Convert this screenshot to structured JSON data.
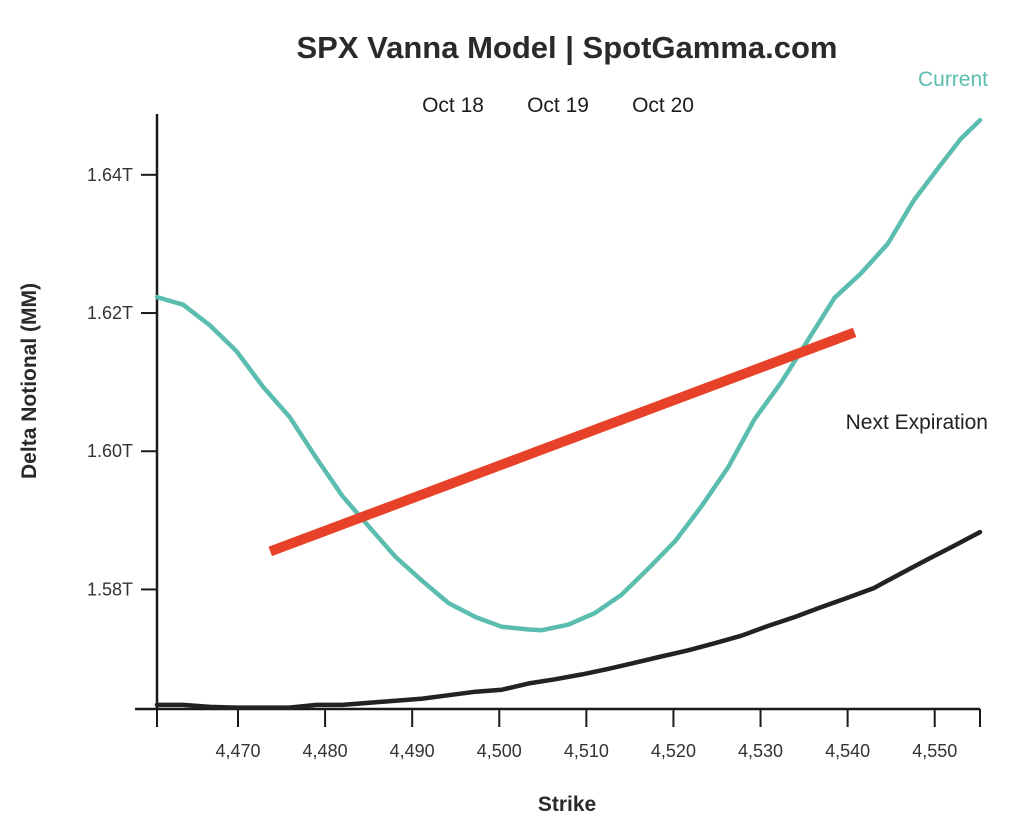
{
  "chart_data": {
    "type": "line",
    "title": "SPX Vanna Model | SpotGamma.com",
    "xlabel": "Strike",
    "ylabel": "Delta Notional (MM)",
    "expiration_labels": [
      "Oct 18",
      "Oct 19",
      "Oct 20"
    ],
    "xlim": [
      4460.7,
      4555.2
    ],
    "ylim": [
      1.5627,
      1.6488
    ],
    "x_ticks": [
      4470,
      4480,
      4490,
      4500,
      4510,
      4520,
      4530,
      4540,
      4550
    ],
    "x_tick_labels": [
      "4,470",
      "4,480",
      "4,490",
      "4,500",
      "4,510",
      "4,520",
      "4,530",
      "4,540",
      "4,550"
    ],
    "y_ticks": [
      1.58,
      1.6,
      1.62,
      1.64
    ],
    "y_tick_labels": [
      "1.58T",
      "1.60T",
      "1.62T",
      "1.64T"
    ],
    "colors": {
      "current": "#5bbcb0",
      "next": "#222222",
      "spot": "#e8412a"
    },
    "series": [
      {
        "name": "Current",
        "x": [
          4460.7,
          4463.7,
          4466.8,
          4469.8,
          4472.9,
          4475.9,
          4479.0,
          4482.0,
          4485.1,
          4488.1,
          4491.2,
          4494.2,
          4497.3,
          4500.3,
          4503.4,
          4504.9,
          4507.9,
          4511.0,
          4514.0,
          4517.1,
          4520.2,
          4523.2,
          4526.3,
          4529.3,
          4532.4,
          4535.4,
          4538.5,
          4541.5,
          4544.6,
          4547.6,
          4550.6,
          4553.0,
          4555.2
        ],
        "values": [
          1.6223,
          1.6212,
          1.6182,
          1.6145,
          1.6093,
          1.605,
          1.599,
          1.5935,
          1.589,
          1.5847,
          1.5812,
          1.578,
          1.576,
          1.5746,
          1.5742,
          1.5741,
          1.5749,
          1.5766,
          1.5792,
          1.583,
          1.587,
          1.592,
          1.5977,
          1.6046,
          1.61,
          1.616,
          1.6222,
          1.6257,
          1.63,
          1.6363,
          1.6413,
          1.6452,
          1.6479
        ]
      },
      {
        "name": "Next Expiration",
        "x": [
          4460.7,
          4463.7,
          4466.8,
          4469.8,
          4472.9,
          4475.9,
          4479.0,
          4482.0,
          4485.1,
          4488.1,
          4491.2,
          4494.2,
          4497.3,
          4500.3,
          4503.4,
          4506.4,
          4509.5,
          4512.5,
          4515.6,
          4518.6,
          4521.7,
          4524.7,
          4527.8,
          4530.8,
          4533.9,
          4536.9,
          4540.0,
          4543.0,
          4546.1,
          4549.1,
          4552.2,
          4555.2
        ],
        "values": [
          1.5633,
          1.5633,
          1.563,
          1.5629,
          1.5629,
          1.5629,
          1.5633,
          1.5633,
          1.5636,
          1.5639,
          1.5642,
          1.5647,
          1.5652,
          1.5655,
          1.5664,
          1.567,
          1.5677,
          1.5685,
          1.5694,
          1.5703,
          1.5712,
          1.5722,
          1.5733,
          1.5747,
          1.576,
          1.5774,
          1.5788,
          1.5802,
          1.5823,
          1.5843,
          1.5863,
          1.5883
        ]
      }
    ],
    "spot_line": {
      "x": [
        4473.7,
        4540.8
      ],
      "values": [
        1.5855,
        1.6172
      ]
    }
  }
}
